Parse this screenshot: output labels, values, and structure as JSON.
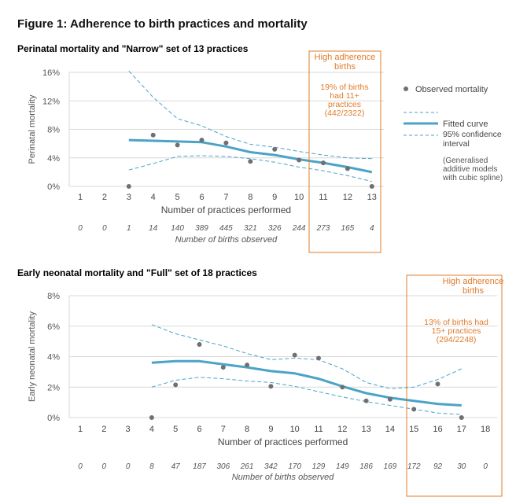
{
  "figure_title": "Figure 1: Adherence to birth practices and mortality",
  "colors": {
    "accent": "#E07B2A",
    "fitted": "#4BA3C7",
    "ci": "#4BA3C7",
    "observed": "#707070",
    "grid": "#D9D9D9"
  },
  "chart_data": [
    {
      "type": "line",
      "title": "Perinatal mortality and \"Narrow\" set of 13 practices",
      "xlabel": "Number of practices performed",
      "ylabel": "Perinatal mortality",
      "x": [
        1,
        2,
        3,
        4,
        5,
        6,
        7,
        8,
        9,
        10,
        11,
        12,
        13
      ],
      "ylim": [
        0,
        16
      ],
      "yticks": [
        0,
        4,
        8,
        12,
        16
      ],
      "ytick_labels": [
        "0%",
        "4%",
        "8%",
        "12%",
        "16%"
      ],
      "grid": true,
      "births_label": "Number of births observed",
      "births": [
        "0",
        "0",
        "1",
        "14",
        "140",
        "389",
        "445",
        "321",
        "326",
        "244",
        "273",
        "165",
        "4"
      ],
      "observed": {
        "x": [
          3,
          4,
          5,
          6,
          7,
          8,
          9,
          10,
          11,
          12,
          13
        ],
        "y": [
          0,
          7.2,
          5.8,
          6.5,
          6.1,
          3.5,
          5.2,
          3.7,
          3.3,
          2.5,
          0
        ]
      },
      "fitted": {
        "x": [
          3,
          4,
          5,
          6,
          7,
          8,
          9,
          10,
          11,
          12,
          13
        ],
        "y": [
          6.5,
          6.4,
          6.3,
          6.2,
          5.6,
          4.8,
          4.4,
          3.8,
          3.3,
          2.7,
          2.0
        ]
      },
      "ci_upper": {
        "x": [
          3,
          4,
          5,
          6,
          7,
          8,
          9,
          10,
          11,
          12,
          13
        ],
        "y": [
          16.2,
          12.5,
          9.5,
          8.5,
          7.0,
          5.9,
          5.5,
          4.9,
          4.4,
          4.0,
          3.9
        ]
      },
      "ci_lower": {
        "x": [
          3,
          4,
          5,
          6,
          7,
          8,
          9,
          10,
          11,
          12,
          13
        ],
        "y": [
          2.3,
          3.2,
          4.2,
          4.3,
          4.2,
          3.9,
          3.4,
          2.7,
          2.2,
          1.5,
          0.7
        ]
      },
      "high_adherence_range": [
        11,
        13
      ],
      "high_adherence_title": "High adherence births",
      "high_adherence_note": "19% of births had 11+ practices (442/2322)",
      "legend": {
        "observed": "Observed mortality",
        "fitted": "Fitted curve",
        "ci": "95% confidence interval",
        "note": "(Generalised additive models with cubic spline)"
      }
    },
    {
      "type": "line",
      "title": "Early neonatal mortality and \"Full\" set of 18 practices",
      "xlabel": "Number of practices performed",
      "ylabel": "Early neonatal mortality",
      "x": [
        1,
        2,
        3,
        4,
        5,
        6,
        7,
        8,
        9,
        10,
        11,
        12,
        13,
        14,
        15,
        16,
        17,
        18
      ],
      "ylim": [
        0,
        8
      ],
      "yticks": [
        0,
        2,
        4,
        6,
        8
      ],
      "ytick_labels": [
        "0%",
        "2%",
        "4%",
        "6%",
        "8%"
      ],
      "grid": true,
      "births_label": "Number of births observed",
      "births": [
        "0",
        "0",
        "0",
        "8",
        "47",
        "187",
        "306",
        "261",
        "342",
        "170",
        "129",
        "149",
        "186",
        "169",
        "172",
        "92",
        "30",
        "0"
      ],
      "observed": {
        "x": [
          4,
          5,
          6,
          7,
          8,
          9,
          10,
          11,
          12,
          13,
          14,
          15,
          16,
          17
        ],
        "y": [
          0,
          2.15,
          4.8,
          3.3,
          3.45,
          2.05,
          4.1,
          3.9,
          2.0,
          1.1,
          1.2,
          0.55,
          2.2,
          0
        ]
      },
      "fitted": {
        "x": [
          4,
          5,
          6,
          7,
          8,
          9,
          10,
          11,
          12,
          13,
          14,
          15,
          16,
          17
        ],
        "y": [
          3.6,
          3.7,
          3.7,
          3.5,
          3.3,
          3.05,
          2.9,
          2.55,
          2.05,
          1.6,
          1.3,
          1.1,
          0.9,
          0.8
        ]
      },
      "ci_upper": {
        "x": [
          4,
          5,
          6,
          7,
          8,
          9,
          10,
          11,
          12,
          13,
          14,
          15,
          16,
          17
        ],
        "y": [
          6.1,
          5.5,
          5.1,
          4.7,
          4.2,
          3.8,
          3.9,
          3.8,
          3.2,
          2.3,
          1.9,
          2.0,
          2.5,
          3.2
        ]
      },
      "ci_lower": {
        "x": [
          4,
          5,
          6,
          7,
          8,
          9,
          10,
          11,
          12,
          13,
          14,
          15,
          16,
          17
        ],
        "y": [
          2.0,
          2.45,
          2.65,
          2.55,
          2.4,
          2.3,
          2.05,
          1.7,
          1.35,
          1.05,
          0.8,
          0.55,
          0.3,
          0.2
        ]
      },
      "high_adherence_range": [
        15,
        17
      ],
      "high_adherence_title": "High adherence births",
      "high_adherence_note": "13% of births had 15+ practices (294/2248)"
    }
  ]
}
